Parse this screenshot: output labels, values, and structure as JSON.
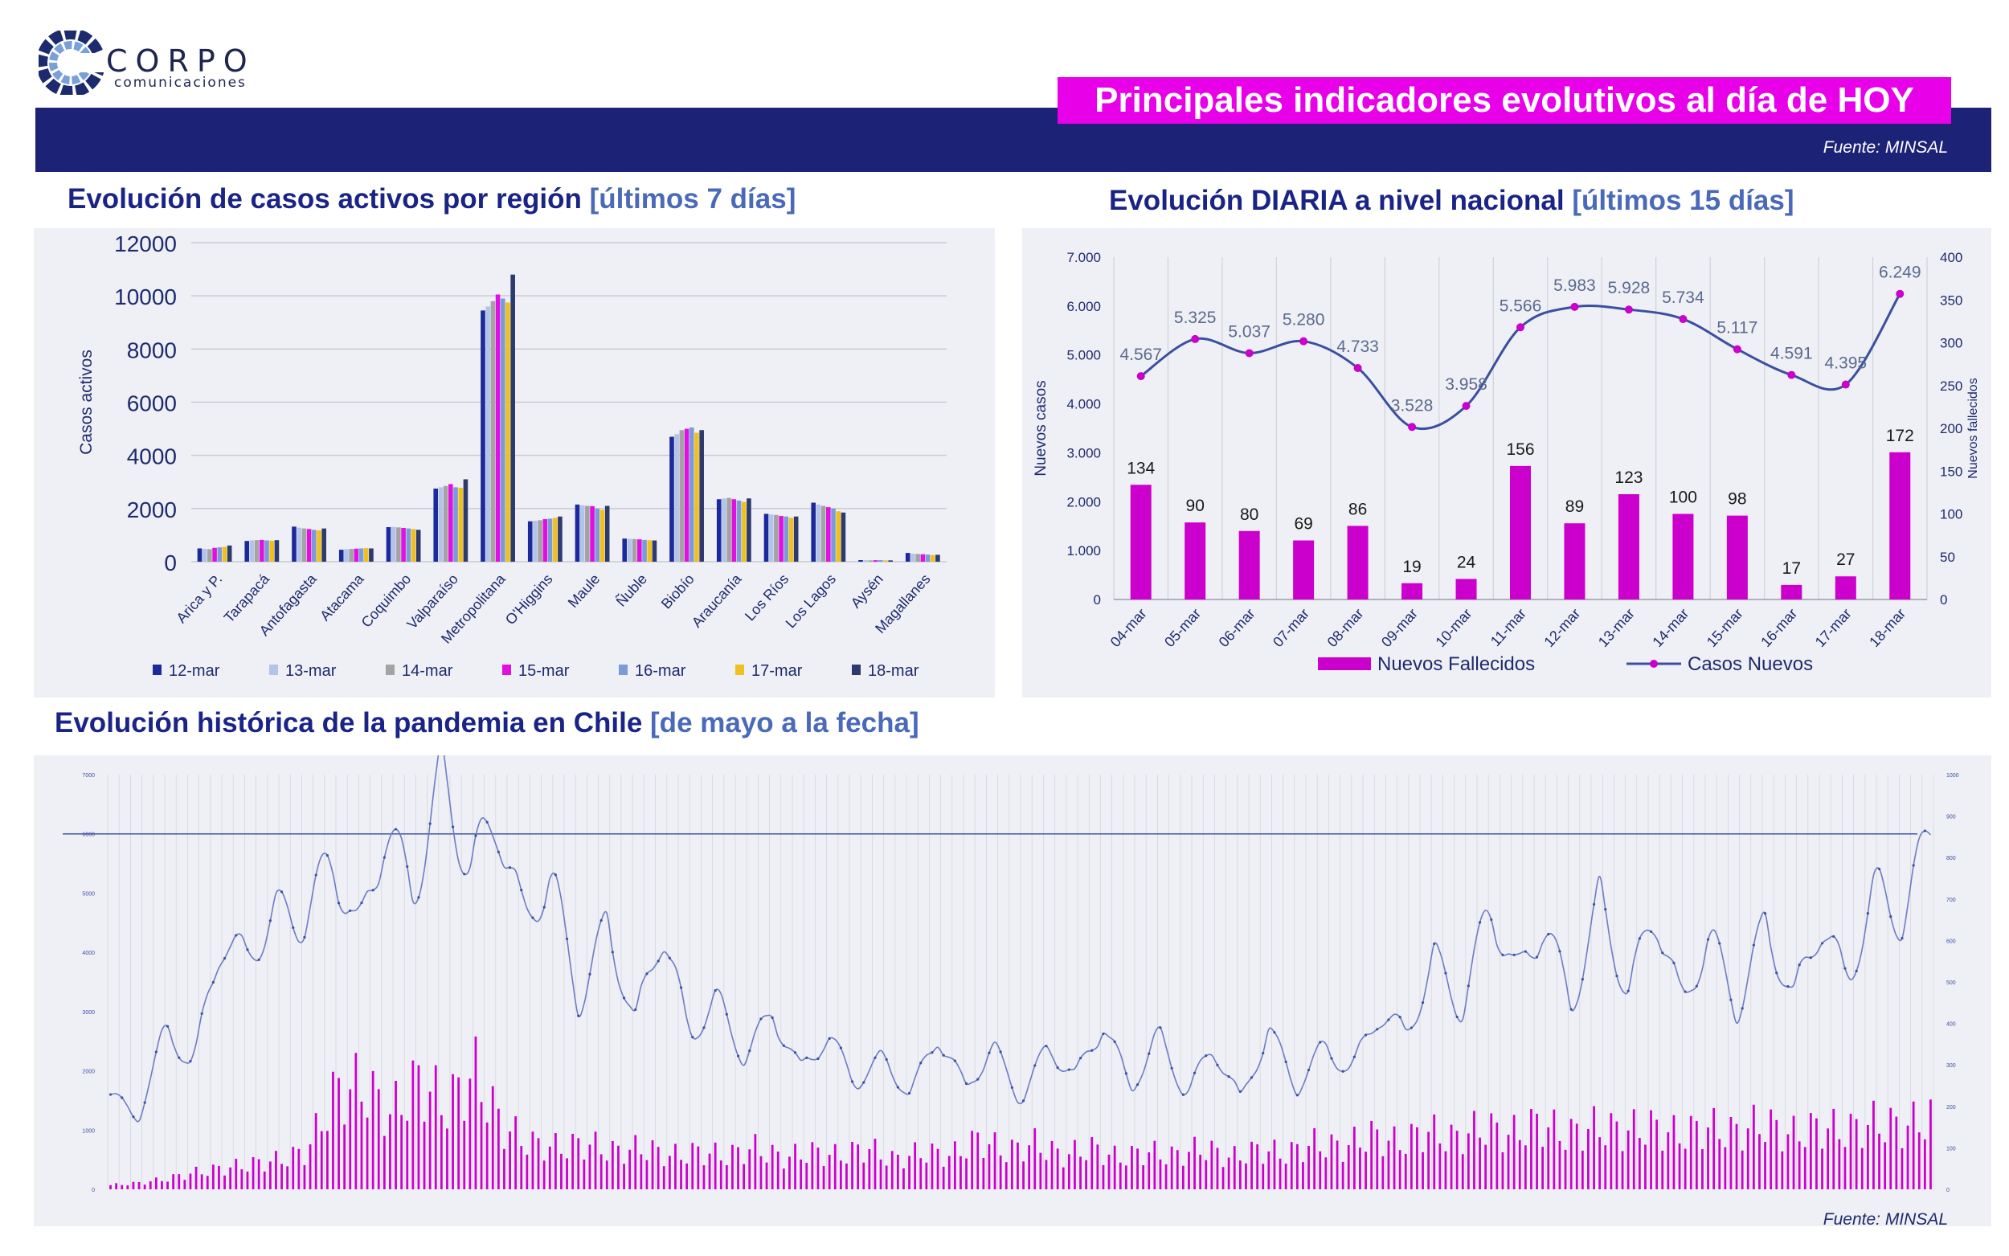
{
  "header": {
    "brand": "CORPO",
    "brand_sub": "comunicaciones",
    "title": "Principales indicadores evolutivos al día de HOY",
    "source": "Fuente: MINSAL",
    "footer_source": "Fuente: MINSAL"
  },
  "sections": {
    "regional": {
      "title": "Evolución de casos activos por región",
      "subtitle": "[últimos 7 días]"
    },
    "daily": {
      "title": "Evolución DIARIA a nivel nacional",
      "subtitle": "[últimos 15 días]"
    },
    "historic": {
      "title": "Evolución histórica de la pandemia en Chile",
      "subtitle": "[de mayo a la fecha]"
    }
  },
  "colors": {
    "navy": "#1c2377",
    "magenta": "#cc00cc",
    "title_blue": "#1a2486",
    "sub_blue": "#4a69b8",
    "line_blue": "#3b4fa0"
  },
  "chart_data": [
    {
      "id": "regional",
      "type": "bar",
      "ylabel": "Casos activos",
      "ylim": [
        0,
        12000
      ],
      "yticks": [
        "0",
        "2000",
        "4000",
        "6000",
        "8000",
        "10000",
        "12000"
      ],
      "categories": [
        "Arica y P.",
        "Tarapacá",
        "Antofagasta",
        "Atacama",
        "Coquimbo",
        "Valparaíso",
        "Metropolitana",
        "O'Higgins",
        "Maule",
        "Ñuble",
        "Biobío",
        "Araucanía",
        "Los Ríos",
        "Los Lagos",
        "Aysén",
        "Magallanes"
      ],
      "series": [
        {
          "name": "12-mar",
          "color": "#1b2a9b",
          "values": [
            500,
            780,
            1320,
            450,
            1300,
            2750,
            9450,
            1520,
            2150,
            870,
            4700,
            2350,
            1800,
            2220,
            60,
            330
          ]
        },
        {
          "name": "13-mar",
          "color": "#b4c3ea",
          "values": [
            480,
            800,
            1280,
            470,
            1310,
            2800,
            9600,
            1540,
            2120,
            860,
            4800,
            2380,
            1780,
            2150,
            55,
            300
          ]
        },
        {
          "name": "14-mar",
          "color": "#a3a3a3",
          "values": [
            470,
            810,
            1250,
            480,
            1290,
            2850,
            9800,
            1560,
            2100,
            850,
            4950,
            2400,
            1760,
            2100,
            50,
            290
          ]
        },
        {
          "name": "15-mar",
          "color": "#e010e0",
          "values": [
            520,
            820,
            1230,
            490,
            1270,
            2920,
            10050,
            1600,
            2090,
            840,
            5000,
            2350,
            1720,
            2050,
            55,
            280
          ]
        },
        {
          "name": "16-mar",
          "color": "#7b9ad8",
          "values": [
            540,
            800,
            1200,
            500,
            1250,
            2800,
            9900,
            1620,
            2000,
            820,
            5050,
            2300,
            1700,
            2000,
            60,
            270
          ]
        },
        {
          "name": "17-mar",
          "color": "#f0c020",
          "values": [
            560,
            790,
            1180,
            510,
            1230,
            2780,
            9750,
            1650,
            1950,
            810,
            4850,
            2250,
            1650,
            1900,
            50,
            250
          ]
        },
        {
          "name": "18-mar",
          "color": "#2d3a6e",
          "values": [
            610,
            810,
            1250,
            500,
            1200,
            3100,
            10800,
            1700,
            2100,
            800,
            4950,
            2380,
            1700,
            1850,
            50,
            260
          ]
        }
      ]
    },
    {
      "id": "daily",
      "type": "bar+line",
      "ylabel_left": "Nuevos casos",
      "ylabel_right": "Nuevos fallecidos",
      "ylim_left": [
        0,
        7000
      ],
      "ylim_right": [
        0,
        400
      ],
      "yticks_left": [
        "0",
        "1.000",
        "2.000",
        "3.000",
        "4.000",
        "5.000",
        "6.000",
        "7.000"
      ],
      "yticks_right": [
        "0",
        "50",
        "100",
        "150",
        "200",
        "250",
        "300",
        "350",
        "400"
      ],
      "categories": [
        "04-mar",
        "05-mar",
        "06-mar",
        "07-mar",
        "08-mar",
        "09-mar",
        "10-mar",
        "11-mar",
        "12-mar",
        "13-mar",
        "14-mar",
        "15-mar",
        "16-mar",
        "17-mar",
        "18-mar"
      ],
      "deaths": {
        "name": "Nuevos Fallecidos",
        "values": [
          134,
          90,
          80,
          69,
          86,
          19,
          24,
          156,
          89,
          123,
          100,
          98,
          17,
          27,
          172
        ]
      },
      "cases": {
        "name": "Casos Nuevos",
        "values": [
          4567,
          5325,
          5037,
          5280,
          4733,
          3528,
          3958,
          5566,
          5983,
          5928,
          5734,
          5117,
          4591,
          4395,
          6249
        ]
      },
      "case_labels": [
        "4.567",
        "5.325",
        "5.037",
        "5.280",
        "4.733",
        "3.528",
        "3.958",
        "5.566",
        "5.983",
        "5.928",
        "5.734",
        "5.117",
        "4.591",
        "4.395",
        "6.249"
      ]
    },
    {
      "id": "historic",
      "type": "bar+line",
      "ylim_left": [
        0,
        7000
      ],
      "ylim_right": [
        0,
        1000
      ],
      "yticks_left": [
        "0",
        "1000",
        "2000",
        "3000",
        "4000",
        "5000",
        "6000",
        "7000"
      ],
      "yticks_right": [
        "0",
        "100",
        "200",
        "300",
        "400",
        "500",
        "600",
        "700",
        "800",
        "900",
        "1000"
      ],
      "reference_line": 6000,
      "cases_anchors": [
        1600,
        1200,
        2700,
        2100,
        4200,
        3900,
        4700,
        4500,
        5600,
        4300,
        6100,
        5000,
        7000,
        5400,
        6300,
        4500,
        5300,
        3100,
        4500,
        2800,
        4400,
        2600,
        3200,
        2200,
        3000,
        2000,
        2600,
        1800,
        2200,
        1600,
        2600,
        1700,
        2400,
        1500,
        2400,
        1900,
        2800,
        1700,
        2600,
        1600,
        2400,
        1500,
        2700,
        1700,
        2400,
        2000,
        3000,
        2600,
        3900,
        3000,
        4800,
        3600,
        4500,
        3100,
        4900,
        3300,
        4700,
        3100,
        4300,
        3000,
        4500,
        3200,
        4500,
        3500,
        5100,
        4500,
        6200
      ],
      "deaths_anchors": [
        10,
        15,
        25,
        40,
        50,
        60,
        70,
        90,
        230,
        250,
        180,
        260,
        200,
        280,
        150,
        110,
        100,
        110,
        90,
        100,
        80,
        90,
        80,
        100,
        75,
        90,
        80,
        100,
        70,
        90,
        80,
        120,
        90,
        110,
        80,
        100,
        75,
        90,
        80,
        100,
        75,
        95,
        85,
        110,
        100,
        130,
        110,
        140,
        120,
        150,
        130,
        160,
        130,
        150,
        140,
        150,
        130,
        150,
        135,
        160,
        130,
        150,
        140,
        160,
        150,
        170
      ]
    }
  ]
}
